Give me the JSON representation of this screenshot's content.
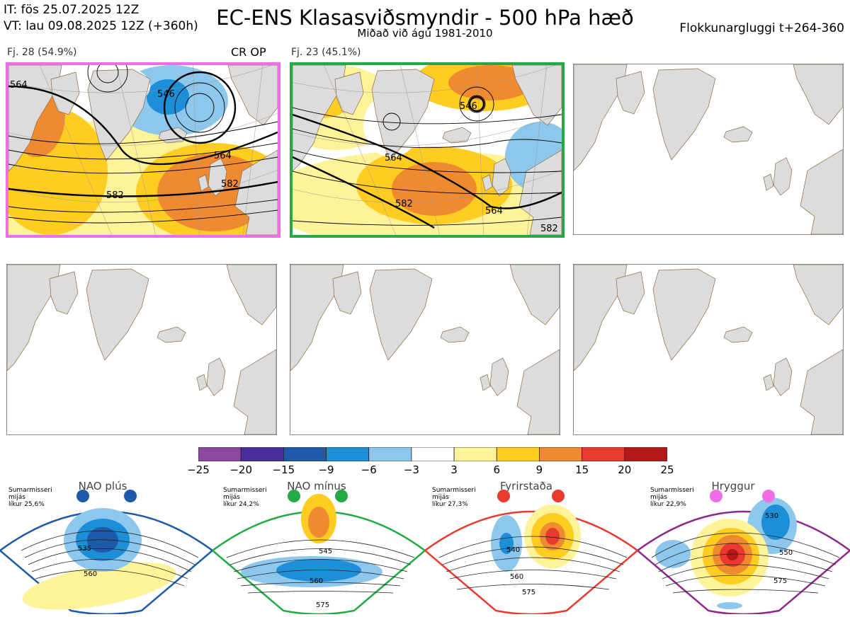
{
  "header": {
    "it_line": "IT: fös 25.07.2025 12Z",
    "vt_line": "VT: lau 09.08.2025 12Z  (+360h)",
    "title": "EC-ENS Klasasviðsmyndir - 500 hPa hæð",
    "subtitle": "Miðað við ágú 1981-2010",
    "window": "Flokkunargluggi t+264-360"
  },
  "panels": [
    {
      "label": "Fj. 28 (54.9%)",
      "tag": "CR OP",
      "border": "#ee6ee6",
      "contours": [
        "564",
        "546",
        "564",
        "582",
        "582"
      ]
    },
    {
      "label": "Fj. 23 (45.1%)",
      "tag": "",
      "border": "#22aa44",
      "contours": [
        "546",
        "564",
        "582",
        "564",
        "582"
      ]
    },
    {
      "label": "",
      "tag": "",
      "border": ""
    },
    {
      "label": "",
      "tag": "",
      "border": ""
    },
    {
      "label": "",
      "tag": "",
      "border": ""
    },
    {
      "label": "",
      "tag": "",
      "border": ""
    }
  ],
  "colorbar": {
    "ticks": [
      "−25",
      "−20",
      "−15",
      "−9",
      "−6",
      "−3",
      "3",
      "6",
      "9",
      "15",
      "20",
      "25"
    ],
    "colors": [
      "#8b4aa0",
      "#4a2e9a",
      "#1f5aa8",
      "#1c8fd8",
      "#8dc8ec",
      "#ffffff",
      "#fff39a",
      "#ffcc22",
      "#f08a30",
      "#e83a2e",
      "#b41818"
    ]
  },
  "regimes": [
    {
      "name": "NAO plús",
      "season": "Sumarmisseri",
      "mean": "mijás",
      "prob": "líkur 25,6%",
      "color": "#1f5aa8",
      "contours": [
        "535",
        "560"
      ]
    },
    {
      "name": "NAO mínus",
      "season": "Sumarmisseri",
      "mean": "mijás",
      "prob": "líkur 24,2%",
      "color": "#22aa44",
      "contours": [
        "545",
        "560",
        "575"
      ]
    },
    {
      "name": "Fyrirstaða",
      "season": "Sumarmisseri",
      "mean": "mijás",
      "prob": "líkur 27,3%",
      "color": "#e83a2e",
      "contours": [
        "540",
        "560",
        "575"
      ]
    },
    {
      "name": "Hryggur",
      "season": "Sumarmisseri",
      "mean": "mijás",
      "prob": "líkur 22,9%",
      "color": "#ee6ee6",
      "contours": [
        "530",
        "550",
        "575"
      ]
    }
  ]
}
